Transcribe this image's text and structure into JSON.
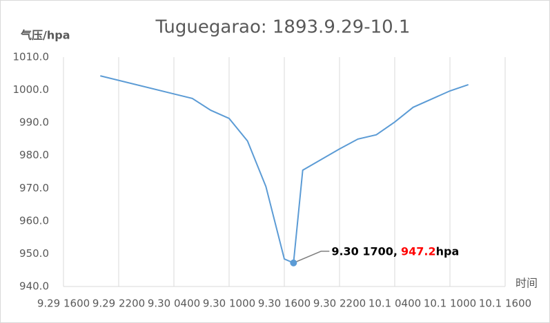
{
  "chart_data": {
    "type": "line",
    "title": "Tuguegarao: 1893.9.29-10.1",
    "y_label": "气压/hpa",
    "x_label": "时间",
    "x": [
      "9.29 2000",
      "9.30 0600",
      "9.30 0800",
      "9.30 1000",
      "9.30 1200",
      "9.30 1400",
      "9.30 1600",
      "9.30 1700",
      "9.30 1800",
      "9.30 2200",
      "10.1 0000",
      "10.1 0200",
      "10.1 0400",
      "10.1 0600",
      "10.1 1000",
      "10.1 1200"
    ],
    "values": [
      1004.3,
      997.4,
      993.8,
      991.3,
      984.4,
      970.5,
      948.4,
      947.2,
      975.5,
      982.0,
      985.0,
      986.3,
      990.2,
      994.7,
      999.7,
      1001.6
    ],
    "value_labels": [
      null,
      null,
      null,
      null,
      null,
      null,
      null,
      "947.2",
      null,
      null,
      null,
      null,
      null,
      null,
      null,
      null
    ],
    "annotation": {
      "prefix": "9.30 1700,",
      "suffix": "hpa"
    },
    "color": "#5b9bd5",
    "highlight_color": "#ff0000",
    "xlim": [
      "9.29 1600",
      "10.1 1600"
    ],
    "xticks": [
      "9.29 1600",
      "9.29 2200",
      "9.30 0400",
      "9.30 1000",
      "9.30 1600",
      "9.30 2200",
      "10.1 0400",
      "10.1 1000",
      "10.1 1600"
    ],
    "ylim": [
      940,
      1010
    ],
    "yticks": [
      {
        "value": 940,
        "label": "940.0"
      },
      {
        "value": 950,
        "label": "950.0"
      },
      {
        "value": 960,
        "label": "960.0"
      },
      {
        "value": 970,
        "label": "970.0"
      },
      {
        "value": 980,
        "label": "980.0"
      },
      {
        "value": 990,
        "label": "990.0"
      },
      {
        "value": 1000,
        "label": "1000.0"
      },
      {
        "value": 1010,
        "label": "1010.0"
      }
    ],
    "grid": "x"
  }
}
